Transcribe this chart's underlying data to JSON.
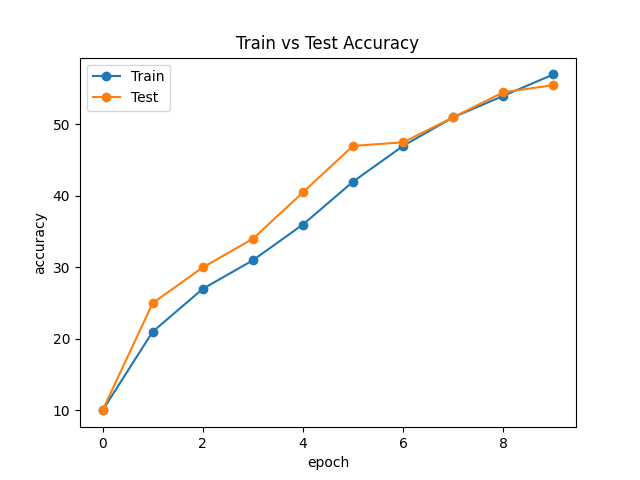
{
  "title": "Train vs Test Accuracy",
  "xlabel": "epoch",
  "ylabel": "accuracy",
  "epochs": [
    0,
    1,
    2,
    3,
    4,
    5,
    6,
    7,
    8,
    9
  ],
  "train_accuracy": [
    10,
    21,
    27,
    31,
    36,
    42,
    47,
    51,
    54,
    57
  ],
  "test_accuracy": [
    10,
    25,
    30,
    34,
    40.5,
    47,
    47.5,
    51,
    54.5,
    55.5
  ],
  "train_color": "#1f77b4",
  "test_color": "#ff7f0e",
  "train_label": "Train",
  "test_label": "Test",
  "marker": "o",
  "linewidth": 1.5,
  "markersize": 6,
  "figwidth": 6.4,
  "figheight": 4.8,
  "dpi": 100
}
